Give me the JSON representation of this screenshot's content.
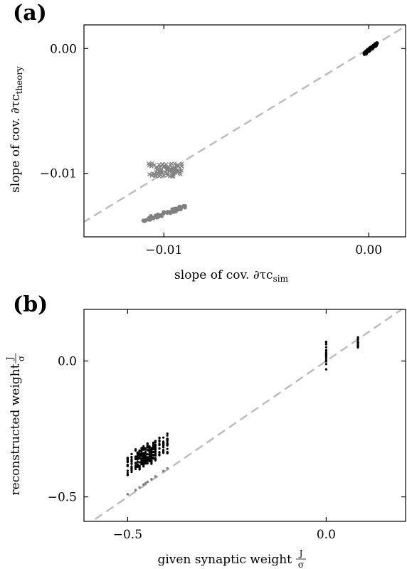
{
  "chart_data": [
    {
      "panel_label": "(a)",
      "type": "scatter",
      "xlabel": "slope of cov. ∂τc",
      "xlabel_sub": "sim",
      "ylabel": "slope of cov. ∂τc",
      "ylabel_sub": "theory",
      "xlim": [
        -0.0139,
        0.0018
      ],
      "ylim": [
        -0.0151,
        0.0019
      ],
      "x_ticks": [
        -0.01,
        0.0
      ],
      "x_tick_labels": [
        "−0.01",
        "0.00"
      ],
      "y_ticks": [
        -0.01,
        0.0
      ],
      "y_tick_labels": [
        "−0.01",
        "0.00"
      ],
      "identity_line": true,
      "grid": false,
      "series": [
        {
          "marker": "circle",
          "color": "#000000",
          "x_range": [
            -0.0002,
            0.0004
          ],
          "y_range": [
            -0.0004,
            0.0004
          ],
          "count": 60
        },
        {
          "marker": "x",
          "color": "#808080",
          "x_range": [
            -0.0108,
            -0.009
          ],
          "y_range": [
            -0.0103,
            -0.0092
          ],
          "count": 90
        },
        {
          "marker": "circle",
          "color": "#808080",
          "x_range": [
            -0.011,
            -0.009
          ],
          "y_range": [
            -0.0138,
            -0.0127
          ],
          "count": 80
        }
      ],
      "colors": {
        "identity": "#bdbdbd",
        "primary": "#000000",
        "secondary": "#808080"
      }
    },
    {
      "panel_label": "(b)",
      "type": "scatter",
      "xlabel": "given synaptic weight",
      "xlabel_frac": {
        "num": "J",
        "den": "σ"
      },
      "ylabel": "reconstructed weight",
      "ylabel_frac": {
        "num": "J",
        "den": "σ"
      },
      "xlim": [
        -0.61,
        0.2
      ],
      "ylim": [
        -0.59,
        0.19
      ],
      "x_ticks": [
        -0.5,
        0.0
      ],
      "x_tick_labels": [
        "−0.5",
        "0.0"
      ],
      "y_ticks": [
        -0.5,
        0.0
      ],
      "y_tick_labels": [
        "−0.5",
        "0.0"
      ],
      "identity_line": true,
      "grid": false,
      "black_columns": [
        {
          "x": -0.5,
          "y_range": [
            -0.42,
            -0.35
          ]
        },
        {
          "x": -0.49,
          "y_range": [
            -0.41,
            -0.33
          ]
        },
        {
          "x": -0.48,
          "y_range": [
            -0.4,
            -0.32
          ]
        },
        {
          "x": -0.475,
          "y_range": [
            -0.39,
            -0.33
          ]
        },
        {
          "x": -0.47,
          "y_range": [
            -0.4,
            -0.32
          ]
        },
        {
          "x": -0.465,
          "y_range": [
            -0.38,
            -0.31
          ]
        },
        {
          "x": -0.46,
          "y_range": [
            -0.39,
            -0.31
          ]
        },
        {
          "x": -0.455,
          "y_range": [
            -0.38,
            -0.32
          ]
        },
        {
          "x": -0.45,
          "y_range": [
            -0.38,
            -0.3
          ]
        },
        {
          "x": -0.445,
          "y_range": [
            -0.37,
            -0.31
          ]
        },
        {
          "x": -0.44,
          "y_range": [
            -0.38,
            -0.3
          ]
        },
        {
          "x": -0.435,
          "y_range": [
            -0.36,
            -0.3
          ]
        },
        {
          "x": -0.43,
          "y_range": [
            -0.37,
            -0.29
          ]
        },
        {
          "x": -0.42,
          "y_range": [
            -0.35,
            -0.28
          ]
        },
        {
          "x": -0.41,
          "y_range": [
            -0.34,
            -0.28
          ]
        },
        {
          "x": -0.4,
          "y_range": [
            -0.34,
            -0.26
          ]
        },
        {
          "x": 0.0,
          "y_range": [
            -0.04,
            0.08
          ]
        },
        {
          "x": 0.08,
          "y_range": [
            0.04,
            0.09
          ]
        }
      ],
      "gray_points": [
        [
          -0.5,
          -0.49
        ],
        [
          -0.48,
          -0.475
        ],
        [
          -0.47,
          -0.465
        ],
        [
          -0.46,
          -0.455
        ],
        [
          -0.455,
          -0.45
        ],
        [
          -0.45,
          -0.445
        ],
        [
          -0.44,
          -0.435
        ],
        [
          -0.43,
          -0.425
        ],
        [
          -0.41,
          -0.405
        ],
        [
          -0.4,
          -0.395
        ]
      ],
      "colors": {
        "identity": "#bdbdbd",
        "primary": "#000000",
        "secondary": "#808080"
      }
    }
  ]
}
